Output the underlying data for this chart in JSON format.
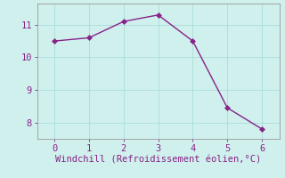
{
  "x": [
    0,
    1,
    2,
    3,
    4,
    5,
    6
  ],
  "y": [
    10.5,
    10.6,
    11.1,
    11.3,
    10.5,
    8.45,
    7.8
  ],
  "line_color": "#882288",
  "marker": "D",
  "marker_size": 3,
  "background_color": "#cff0ec",
  "grid_color": "#aaddda",
  "xlabel": "Windchill (Refroidissement éolien,°C)",
  "xlabel_color": "#882288",
  "tick_color": "#882288",
  "xlim": [
    -0.5,
    6.5
  ],
  "ylim": [
    7.5,
    11.65
  ],
  "xticks": [
    0,
    1,
    2,
    3,
    4,
    5,
    6
  ],
  "yticks": [
    8,
    9,
    10,
    11
  ],
  "xlabel_fontsize": 7.5,
  "tick_fontsize": 7.5,
  "spine_color": "#999999",
  "line_width": 1.0
}
